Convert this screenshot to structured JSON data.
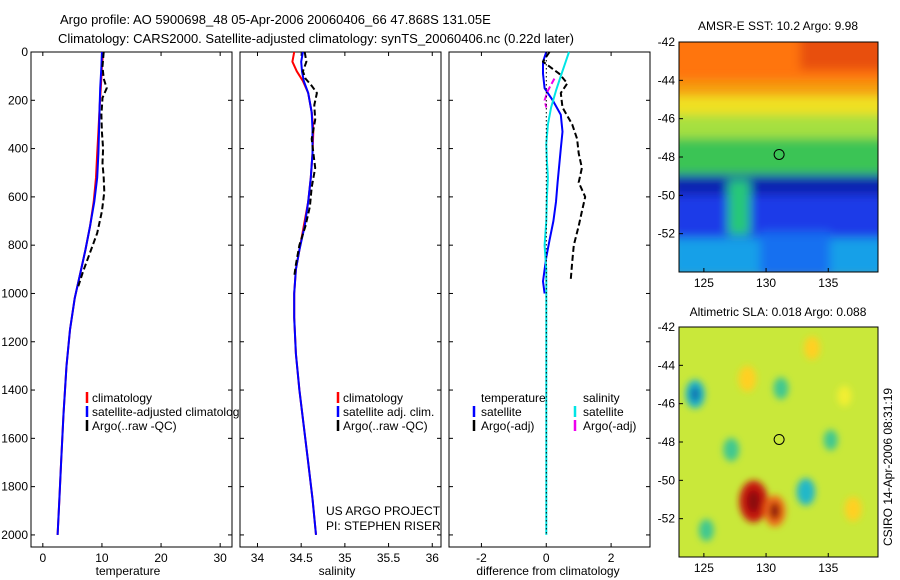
{
  "title_line1": "Argo profile: AO 5900698_48 05-Apr-2006 20060406_66 47.868S 131.05E",
  "title_line2": "Climatology: CARS2000. Satellite-adjusted climatology: synTS_20060406.nc (0.22d later)",
  "sidenote": "CSIRO 14-Apr-2006 08:31:19",
  "colors": {
    "climatology": "#ff0000",
    "satellite": "#0000ff",
    "argo": "#000000",
    "sal_satellite": "#00e5e5",
    "sal_argo": "#ee00ee"
  },
  "chart_data": [
    {
      "type": "line",
      "id": "temperature",
      "xlabel": "temperature",
      "xlim": [
        -2,
        32
      ],
      "ylim": [
        2050,
        0
      ],
      "xticks": [
        0,
        10,
        20,
        30
      ],
      "xtick_labels": [
        "0",
        "10",
        "20",
        "30"
      ],
      "yticks": [
        0,
        200,
        400,
        600,
        800,
        1000,
        1200,
        1400,
        1600,
        1800,
        2000
      ],
      "ytick_labels": [
        "0",
        "200",
        "400",
        "600",
        "800",
        "1000",
        "1200",
        "1400",
        "1600",
        "1800",
        "2000"
      ],
      "legend": [
        "climatology",
        "satellite-adjusted climatology",
        "Argo(..raw -QC)"
      ],
      "series": [
        {
          "name": "climatology",
          "color": "#ff0000",
          "style": "solid",
          "points": [
            [
              10.2,
              0
            ],
            [
              10.0,
              60
            ],
            [
              9.8,
              150
            ],
            [
              9.6,
              230
            ],
            [
              9.4,
              330
            ],
            [
              9.2,
              420
            ],
            [
              9.0,
              520
            ],
            [
              8.6,
              620
            ],
            [
              8.0,
              720
            ],
            [
              7.2,
              820
            ],
            [
              6.3,
              920
            ],
            [
              5.4,
              1020
            ],
            [
              4.6,
              1150
            ],
            [
              4.0,
              1300
            ],
            [
              3.5,
              1500
            ],
            [
              3.1,
              1700
            ],
            [
              2.8,
              1850
            ],
            [
              2.5,
              2000
            ]
          ]
        },
        {
          "name": "satellite-adjusted climatology",
          "color": "#0000ff",
          "style": "solid",
          "points": [
            [
              10.0,
              0
            ],
            [
              9.9,
              60
            ],
            [
              9.7,
              150
            ],
            [
              9.6,
              230
            ],
            [
              9.5,
              330
            ],
            [
              9.4,
              420
            ],
            [
              9.2,
              520
            ],
            [
              8.7,
              620
            ],
            [
              8.0,
              720
            ],
            [
              7.2,
              820
            ],
            [
              6.3,
              920
            ],
            [
              5.4,
              1020
            ],
            [
              4.6,
              1150
            ],
            [
              4.0,
              1300
            ],
            [
              3.5,
              1500
            ],
            [
              3.1,
              1700
            ],
            [
              2.8,
              1850
            ],
            [
              2.5,
              2000
            ]
          ]
        },
        {
          "name": "Argo",
          "color": "#000000",
          "style": "dashed",
          "points": [
            [
              10.3,
              0
            ],
            [
              10.1,
              60
            ],
            [
              10.3,
              110
            ],
            [
              10.8,
              150
            ],
            [
              10.1,
              190
            ],
            [
              9.9,
              260
            ],
            [
              10.0,
              330
            ],
            [
              10.2,
              400
            ],
            [
              10.1,
              460
            ],
            [
              10.3,
              520
            ],
            [
              10.4,
              580
            ],
            [
              10.0,
              660
            ],
            [
              9.2,
              750
            ],
            [
              8.0,
              830
            ],
            [
              6.8,
              910
            ],
            [
              6.0,
              970
            ]
          ]
        }
      ]
    },
    {
      "type": "line",
      "id": "salinity",
      "xlabel": "salinity",
      "xlim": [
        33.8,
        36.1
      ],
      "ylim": [
        2050,
        0
      ],
      "xticks": [
        34,
        34.5,
        35,
        35.5,
        36
      ],
      "xtick_labels": [
        "34",
        "34.5",
        "35",
        "35.5",
        "36"
      ],
      "legend": [
        "climatology",
        "satellite adj. clim.",
        "Argo(..raw -QC)"
      ],
      "annotations": [
        "US ARGO PROJECT",
        "PI: STEPHEN RISER"
      ],
      "series": [
        {
          "name": "climatology",
          "color": "#ff0000",
          "style": "solid",
          "points": [
            [
              34.42,
              0
            ],
            [
              34.4,
              40
            ],
            [
              34.45,
              80
            ],
            [
              34.52,
              120
            ],
            [
              34.58,
              170
            ],
            [
              34.62,
              250
            ],
            [
              34.64,
              320
            ],
            [
              34.63,
              420
            ],
            [
              34.61,
              520
            ],
            [
              34.58,
              620
            ],
            [
              34.53,
              720
            ],
            [
              34.48,
              820
            ],
            [
              34.44,
              900
            ],
            [
              34.42,
              1000
            ],
            [
              34.42,
              1100
            ],
            [
              34.44,
              1250
            ],
            [
              34.48,
              1400
            ],
            [
              34.53,
              1550
            ],
            [
              34.58,
              1700
            ],
            [
              34.63,
              1850
            ],
            [
              34.67,
              2000
            ]
          ]
        },
        {
          "name": "satellite adj. clim.",
          "color": "#0000ff",
          "style": "solid",
          "points": [
            [
              34.52,
              0
            ],
            [
              34.5,
              40
            ],
            [
              34.51,
              80
            ],
            [
              34.53,
              120
            ],
            [
              34.58,
              170
            ],
            [
              34.62,
              250
            ],
            [
              34.63,
              320
            ],
            [
              34.63,
              420
            ],
            [
              34.61,
              520
            ],
            [
              34.58,
              620
            ],
            [
              34.54,
              720
            ],
            [
              34.48,
              820
            ],
            [
              34.44,
              900
            ],
            [
              34.42,
              1000
            ],
            [
              34.42,
              1100
            ],
            [
              34.44,
              1250
            ],
            [
              34.48,
              1400
            ],
            [
              34.53,
              1550
            ],
            [
              34.58,
              1700
            ],
            [
              34.63,
              1850
            ],
            [
              34.67,
              2000
            ]
          ]
        },
        {
          "name": "Argo",
          "color": "#000000",
          "style": "dashed",
          "points": [
            [
              34.54,
              0
            ],
            [
              34.56,
              40
            ],
            [
              34.52,
              80
            ],
            [
              34.55,
              110
            ],
            [
              34.62,
              140
            ],
            [
              34.68,
              170
            ],
            [
              34.65,
              220
            ],
            [
              34.66,
              280
            ],
            [
              34.62,
              360
            ],
            [
              34.64,
              420
            ],
            [
              34.66,
              480
            ],
            [
              34.62,
              560
            ],
            [
              34.6,
              640
            ],
            [
              34.55,
              720
            ],
            [
              34.48,
              800
            ],
            [
              34.44,
              880
            ],
            [
              34.42,
              930
            ]
          ]
        }
      ]
    },
    {
      "type": "line",
      "id": "difference",
      "xlabel": "difference from climatology",
      "xlim": [
        -3,
        3.2
      ],
      "ylim": [
        2050,
        0
      ],
      "xticks": [
        -2,
        0,
        2
      ],
      "xtick_labels": [
        "-2",
        "0",
        "2"
      ],
      "legend_groups": [
        {
          "heading": "temperature",
          "items": [
            "satellite",
            "Argo(-adj)"
          ]
        },
        {
          "heading": "salinity",
          "items": [
            "satellite",
            "Argo(-adj)"
          ]
        }
      ],
      "series": [
        {
          "name": "temperature satellite",
          "color": "#0000ff",
          "style": "solid",
          "points": [
            [
              0.0,
              0
            ],
            [
              -0.1,
              40
            ],
            [
              -0.1,
              90
            ],
            [
              -0.05,
              150
            ],
            [
              0.2,
              200
            ],
            [
              0.45,
              260
            ],
            [
              0.5,
              330
            ],
            [
              0.45,
              400
            ],
            [
              0.4,
              470
            ],
            [
              0.35,
              540
            ],
            [
              0.3,
              620
            ],
            [
              0.22,
              700
            ],
            [
              0.1,
              780
            ],
            [
              0.0,
              850
            ],
            [
              -0.1,
              950
            ],
            [
              -0.05,
              1000
            ]
          ]
        },
        {
          "name": "temperature Argo(-adj)",
          "color": "#000000",
          "style": "dashed",
          "points": [
            [
              0.1,
              0
            ],
            [
              -0.1,
              40
            ],
            [
              0.4,
              90
            ],
            [
              0.65,
              130
            ],
            [
              0.45,
              170
            ],
            [
              0.5,
              230
            ],
            [
              0.8,
              300
            ],
            [
              0.95,
              360
            ],
            [
              1.0,
              420
            ],
            [
              1.1,
              480
            ],
            [
              1.0,
              540
            ],
            [
              1.2,
              600
            ],
            [
              1.1,
              660
            ],
            [
              1.0,
              720
            ],
            [
              0.85,
              800
            ],
            [
              0.8,
              870
            ],
            [
              0.75,
              950
            ]
          ]
        },
        {
          "name": "salinity satellite",
          "color": "#00e5e5",
          "style": "solid",
          "points": [
            [
              0.7,
              0
            ],
            [
              0.6,
              40
            ],
            [
              0.45,
              100
            ],
            [
              0.3,
              160
            ],
            [
              0.15,
              230
            ],
            [
              0.05,
              300
            ],
            [
              0.0,
              380
            ],
            [
              0.02,
              450
            ],
            [
              0.05,
              520
            ],
            [
              0.02,
              600
            ],
            [
              0.0,
              700
            ],
            [
              -0.05,
              800
            ],
            [
              0.0,
              900
            ],
            [
              0.0,
              1000
            ],
            [
              0.0,
              1200
            ],
            [
              0.0,
              1400
            ],
            [
              0.0,
              1600
            ],
            [
              0.0,
              1800
            ],
            [
              0.0,
              2000
            ]
          ]
        },
        {
          "name": "salinity Argo(-adj)",
          "color": "#ee00ee",
          "style": "dashed",
          "points": [
            [
              0.25,
              110
            ],
            [
              0.05,
              160
            ],
            [
              -0.05,
              200
            ],
            [
              0.0,
              230
            ]
          ]
        },
        {
          "name": "zero line",
          "color": "#000000",
          "style": "dotted",
          "points": [
            [
              0,
              0
            ],
            [
              0,
              2000
            ]
          ]
        }
      ]
    },
    {
      "type": "heatmap",
      "id": "sst_map",
      "title": "AMSR-E SST: 10.2 Argo: 9.98",
      "xlim": [
        123,
        139
      ],
      "ylim": [
        -54,
        -42
      ],
      "xticks": [
        125,
        130,
        135
      ],
      "xtick_labels": [
        "125",
        "130",
        "135"
      ],
      "yticks": [
        -42,
        -44,
        -46,
        -48,
        -50,
        -52
      ],
      "ytick_labels": [
        "-42",
        "-44",
        "-46",
        "-48",
        "-50",
        "-52"
      ],
      "marker": [
        131.05,
        -47.868
      ],
      "color_levels": [
        {
          "from": -54,
          "to": -52.7,
          "value": "cyan-blue"
        },
        {
          "from": -52.7,
          "to": -50.6,
          "value": "blue"
        },
        {
          "from": -50.6,
          "to": -49.7,
          "value": "dark-blue"
        },
        {
          "from": -49.7,
          "to": -47.3,
          "value": "green"
        },
        {
          "from": -47.3,
          "to": -45.5,
          "value": "yellow"
        },
        {
          "from": -45.5,
          "to": -42,
          "value": "orange"
        }
      ]
    },
    {
      "type": "heatmap",
      "id": "sla_map",
      "title": "Altimetric SLA: 0.018 Argo: 0.088",
      "xlim": [
        123,
        139
      ],
      "ylim": [
        -54,
        -42
      ],
      "xticks": [
        125,
        130,
        135
      ],
      "xtick_labels": [
        "125",
        "130",
        "135"
      ],
      "yticks": [
        -42,
        -44,
        -46,
        -48,
        -50,
        -52
      ],
      "ytick_labels": [
        "-42",
        "-44",
        "-46",
        "-48",
        "-50",
        "-52"
      ],
      "marker": [
        131.05,
        -47.868
      ],
      "anomalies": [
        {
          "lon": 124.3,
          "lat": -45.5,
          "value": -0.1
        },
        {
          "lon": 128.5,
          "lat": -44.7,
          "value": 0.08
        },
        {
          "lon": 131.2,
          "lat": -45.2,
          "value": -0.05
        },
        {
          "lon": 133.7,
          "lat": -43.1,
          "value": 0.06
        },
        {
          "lon": 127.2,
          "lat": -48.4,
          "value": -0.06
        },
        {
          "lon": 135.2,
          "lat": -47.9,
          "value": -0.04
        },
        {
          "lon": 129.0,
          "lat": -51.1,
          "value": 0.2
        },
        {
          "lon": 130.7,
          "lat": -51.6,
          "value": 0.12
        },
        {
          "lon": 133.2,
          "lat": -50.6,
          "value": -0.09
        },
        {
          "lon": 137.0,
          "lat": -51.5,
          "value": 0.07
        },
        {
          "lon": 125.2,
          "lat": -52.6,
          "value": -0.05
        },
        {
          "lon": 136.3,
          "lat": -45.6,
          "value": 0.04
        }
      ]
    }
  ]
}
